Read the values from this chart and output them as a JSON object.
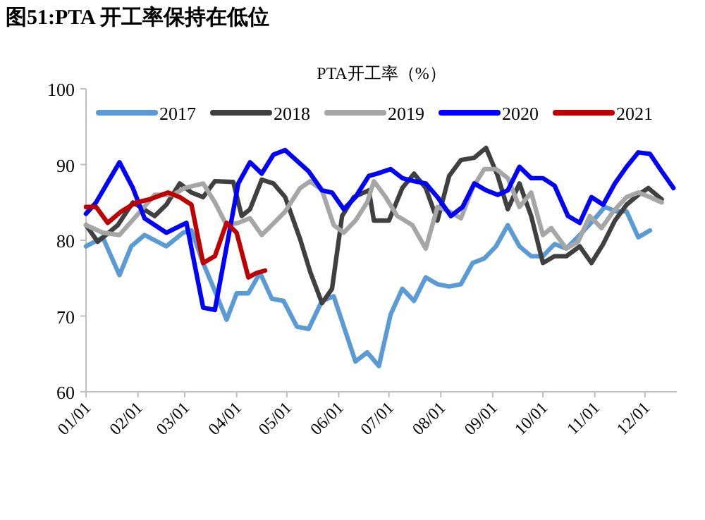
{
  "chart_data": {
    "type": "line",
    "title": "图51:PTA 开工率保持在低位",
    "subtitle": "PTA开工率（%）",
    "xlim": [
      "--01-01",
      "--12-20"
    ],
    "xticks": [
      {
        "value": "--01-01",
        "label": "01/01"
      },
      {
        "value": "--02-01",
        "label": "02/01"
      },
      {
        "value": "--03-01",
        "label": "03/01"
      },
      {
        "value": "--04-01",
        "label": "04/01"
      },
      {
        "value": "--05-01",
        "label": "05/01"
      },
      {
        "value": "--06-01",
        "label": "06/01"
      },
      {
        "value": "--07-01",
        "label": "07/01"
      },
      {
        "value": "--08-01",
        "label": "08/01"
      },
      {
        "value": "--09-01",
        "label": "09/01"
      },
      {
        "value": "--10-01",
        "label": "10/01"
      },
      {
        "value": "--11-01",
        "label": "11/01"
      },
      {
        "value": "--12-01",
        "label": "12/01"
      }
    ],
    "ylim": [
      60,
      100
    ],
    "yticks": [
      60,
      70,
      80,
      90,
      100
    ],
    "grid": false,
    "legend": "top",
    "marker": "none",
    "line_style": "solid",
    "series": [
      {
        "name": "2017",
        "color": "#5b9bd5",
        "x": [
          "--01-01",
          "--01-11",
          "--01-21",
          "--01-28",
          "--02-05",
          "--02-18",
          "--02-28",
          "--03-05",
          "--03-12",
          "--03-19",
          "--03-26",
          "--04-01",
          "--04-08",
          "--04-15",
          "--04-22",
          "--04-29",
          "--05-07",
          "--05-14",
          "--05-22",
          "--05-29",
          "--06-11",
          "--06-18",
          "--06-25",
          "--07-02",
          "--07-09",
          "--07-16",
          "--07-23",
          "--07-30",
          "--08-06",
          "--08-13",
          "--08-20",
          "--08-27",
          "--09-03",
          "--09-10",
          "--09-17",
          "--09-24",
          "--10-01",
          "--10-08",
          "--10-15",
          "--10-23",
          "--10-31",
          "--11-07",
          "--11-14",
          "--11-20",
          "--11-27",
          "--12-04"
        ],
        "values": [
          79.2,
          80.4,
          75.4,
          79.2,
          80.7,
          79.2,
          81,
          81.3,
          77,
          73.3,
          69.5,
          73,
          73,
          75.7,
          72.3,
          72,
          68.6,
          68.3,
          72,
          72.6,
          64,
          65.2,
          63.4,
          70.2,
          73.6,
          72,
          75.1,
          74.2,
          73.9,
          74.2,
          77,
          77.6,
          79.2,
          82,
          79.2,
          77.9,
          77.9,
          79.5,
          78.9,
          80.7,
          82.6,
          84.4,
          83.8,
          83.8,
          80.4,
          81.3
        ]
      },
      {
        "name": "2018",
        "color": "#404040",
        "x": [
          "--01-01",
          "--01-08",
          "--01-20",
          "--01-29",
          "--02-11",
          "--02-18",
          "--02-26",
          "--03-05",
          "--03-12",
          "--03-19",
          "--03-30",
          "--04-04",
          "--04-09",
          "--04-16",
          "--04-23",
          "--04-30",
          "--05-09",
          "--05-15",
          "--05-22",
          "--05-28",
          "--06-03",
          "--06-10",
          "--06-19",
          "--06-22",
          "--07-01",
          "--07-09",
          "--07-16",
          "--07-23",
          "--07-30",
          "--08-06",
          "--08-13",
          "--08-21",
          "--08-28",
          "--09-04",
          "--09-10",
          "--09-17",
          "--09-24",
          "--10-01",
          "--10-08",
          "--10-15",
          "--10-23",
          "--10-30",
          "--11-06",
          "--11-13",
          "--11-20",
          "--11-27",
          "--12-03",
          "--12-11"
        ],
        "values": [
          82,
          79.8,
          82,
          85,
          83.2,
          84.7,
          87.5,
          86.3,
          85.7,
          87.8,
          87.7,
          83.2,
          84.1,
          88,
          87.5,
          85.7,
          80.1,
          75.8,
          71.7,
          73.6,
          83.2,
          85.7,
          86.6,
          82.6,
          82.6,
          86.9,
          88.8,
          86.9,
          82.6,
          88.5,
          90.6,
          90.9,
          92.2,
          88.5,
          84.1,
          87.5,
          83.2,
          77,
          77.9,
          77.9,
          79.2,
          77,
          79.5,
          82.6,
          84.7,
          86,
          86.9,
          85.4
        ]
      },
      {
        "name": "2019",
        "color": "#a6a6a6",
        "x": [
          "--01-01",
          "--01-11",
          "--01-21",
          "--01-31",
          "--02-11",
          "--02-22",
          "--03-01",
          "--03-12",
          "--03-19",
          "--03-26",
          "--04-02",
          "--04-09",
          "--04-16",
          "--04-22",
          "--04-30",
          "--05-09",
          "--05-15",
          "--05-22",
          "--05-29",
          "--06-04",
          "--06-11",
          "--06-18",
          "--06-22",
          "--06-29",
          "--07-06",
          "--07-15",
          "--07-23",
          "--07-30",
          "--08-06",
          "--08-13",
          "--08-20",
          "--08-27",
          "--09-03",
          "--09-10",
          "--09-17",
          "--09-24",
          "--10-01",
          "--10-06",
          "--10-15",
          "--10-22",
          "--10-29",
          "--11-05",
          "--11-12",
          "--11-20",
          "--11-27",
          "--12-04",
          "--12-11"
        ],
        "values": [
          82,
          81,
          80.7,
          83.2,
          86,
          86,
          86.9,
          87.5,
          85,
          82,
          82.3,
          82.9,
          80.7,
          82,
          83.8,
          86.9,
          87.8,
          86.6,
          82,
          81,
          82.6,
          85,
          87.8,
          85.7,
          83.2,
          82,
          78.9,
          84.4,
          83.8,
          82.9,
          86.9,
          89.4,
          89.4,
          88.2,
          84.4,
          86.3,
          80.7,
          81.6,
          78.9,
          79.8,
          83.2,
          81.6,
          83.8,
          85.7,
          86.3,
          85.7,
          85
        ]
      },
      {
        "name": "2020",
        "color": "#0000ff",
        "x": [
          "--01-01",
          "--01-07",
          "--01-21",
          "--01-29",
          "--02-05",
          "--02-18",
          "--03-02",
          "--03-12",
          "--03-19",
          "--04-02",
          "--04-09",
          "--04-16",
          "--04-23",
          "--04-30",
          "--05-14",
          "--05-22",
          "--05-28",
          "--06-04",
          "--06-11",
          "--06-19",
          "--06-24",
          "--07-02",
          "--07-09",
          "--07-16",
          "--07-23",
          "--07-30",
          "--08-07",
          "--08-14",
          "--08-21",
          "--08-28",
          "--09-04",
          "--09-10",
          "--09-17",
          "--09-24",
          "--10-01",
          "--10-08",
          "--10-16",
          "--10-23",
          "--10-30",
          "--11-06",
          "--11-13",
          "--11-20",
          "--11-27",
          "--12-04",
          "--12-11",
          "--12-18"
        ],
        "values": [
          83.5,
          85,
          90.3,
          86.9,
          82.9,
          81,
          82.3,
          71.1,
          70.8,
          87.5,
          90.3,
          88.8,
          91.3,
          91.9,
          89.1,
          86.6,
          86.3,
          84.1,
          85.7,
          88.5,
          88.8,
          89.4,
          88.2,
          87.8,
          87.5,
          85.7,
          83.2,
          84.4,
          87.5,
          86.6,
          86,
          86.6,
          89.7,
          88.2,
          88.2,
          87.2,
          83.2,
          82.3,
          85.7,
          84.7,
          87.5,
          89.7,
          91.6,
          91.4,
          89.1,
          86.9
        ]
      },
      {
        "name": "2021",
        "color": "#c00000",
        "x": [
          "--01-01",
          "--01-07",
          "--01-14",
          "--01-22",
          "--01-31",
          "--02-08",
          "--02-19",
          "--02-26",
          "--03-05",
          "--03-12",
          "--03-19",
          "--03-26",
          "--04-01",
          "--04-08",
          "--04-13",
          "--04-18"
        ],
        "values": [
          84.4,
          84.4,
          82.3,
          83.8,
          85,
          85.4,
          86.3,
          85.7,
          84.7,
          77,
          77.9,
          82.3,
          81,
          75.1,
          75.7,
          76
        ]
      }
    ]
  }
}
